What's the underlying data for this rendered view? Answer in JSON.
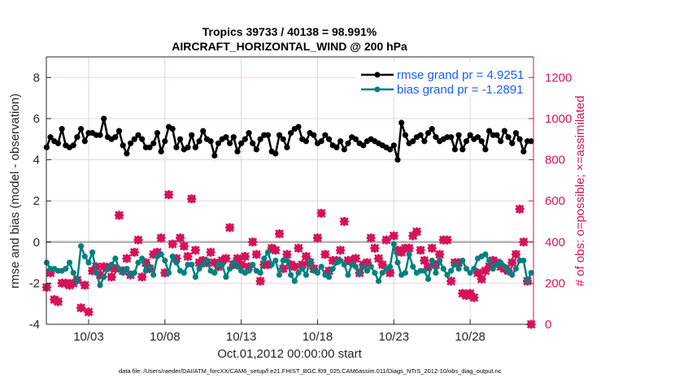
{
  "chart_data": {
    "type": "line",
    "title": [
      "Tropics 39733 / 40138 = 98.991%",
      "AIRCRAFT_HORIZONTAL_WIND @ 200 hPa"
    ],
    "xlabel": "Oct.01,2012 00:00:00 start",
    "ylabel": "rmse and bias (model - observation)",
    "ylabel_right": "# of obs: o=possible; ×=assimilated",
    "xlim_days": [
      -0.77,
      31.15
    ],
    "x_start_day": -0.75,
    "x_step_days": 0.25,
    "x_ticks": [
      {
        "day": 2,
        "label": "10/03"
      },
      {
        "day": 7,
        "label": "10/08"
      },
      {
        "day": 12,
        "label": "10/13"
      },
      {
        "day": 17,
        "label": "10/18"
      },
      {
        "day": 22,
        "label": "10/23"
      },
      {
        "day": 27,
        "label": "10/28"
      }
    ],
    "ylim": [
      -4,
      9
    ],
    "y_ticks": [
      "-4",
      "-2",
      "0",
      "2",
      "4",
      "6",
      "8"
    ],
    "ylim_right": [
      0,
      1300
    ],
    "y_ticks_right": [
      "0",
      "200",
      "400",
      "600",
      "800",
      "1000",
      "1200"
    ],
    "grid": true,
    "legend_position": "top-right",
    "colors": {
      "rmse": "#000000",
      "bias": "#00807f",
      "obs": "#d5135a",
      "legend_text": "#1a5cff"
    },
    "series": [
      {
        "name": "rmse grand pr = 4.9251",
        "key": "rmse",
        "values": [
          4.6,
          5.1,
          4.9,
          4.8,
          5.5,
          4.7,
          4.6,
          4.7,
          5.1,
          5.5,
          4.9,
          5.3,
          5.3,
          5.2,
          5.2,
          6.0,
          5.1,
          5.0,
          5.1,
          5.4,
          4.7,
          4.3,
          4.8,
          5.0,
          5.2,
          5.0,
          4.6,
          4.6,
          4.8,
          5.3,
          4.4,
          4.9,
          5.6,
          5.5,
          4.6,
          5.0,
          4.5,
          4.6,
          5.2,
          4.6,
          4.9,
          5.4,
          5.0,
          4.9,
          4.2,
          4.8,
          5.0,
          5.1,
          4.8,
          5.1,
          4.4,
          4.8,
          5.0,
          5.3,
          4.8,
          4.5,
          5.0,
          5.2,
          5.2,
          4.4,
          4.3,
          5.2,
          5.0,
          4.6,
          5.3,
          5.5,
          5.6,
          5.0,
          4.9,
          5.3,
          5.2,
          4.8,
          4.9,
          5.2,
          5.0,
          4.7,
          4.6,
          4.9,
          4.5,
          4.8,
          5.1,
          5.0,
          4.8,
          4.7,
          4.9,
          5.0,
          4.9,
          4.8,
          4.7,
          4.6,
          4.5,
          4.7,
          4.0,
          5.8,
          5.2,
          4.8,
          4.9,
          5.1,
          5.2,
          4.9,
          5.3,
          5.5,
          5.1,
          4.9,
          5.0,
          5.1,
          5.1,
          4.5,
          5.2,
          4.5,
          4.9,
          5.2,
          5.0,
          5.1,
          4.9,
          4.5,
          5.4,
          5.2,
          5.2,
          4.9,
          5.4,
          5.1,
          4.8,
          5.3,
          5.0,
          4.4,
          4.9,
          4.9
        ]
      },
      {
        "name": "bias grand pr = -1.2891",
        "key": "bias",
        "values": [
          -1.0,
          -1.3,
          -1.3,
          -1.4,
          -1.4,
          -1.3,
          -1.0,
          -1.5,
          -1.9,
          -0.2,
          -0.7,
          -1.0,
          -0.5,
          -1.5,
          -2.1,
          -1.7,
          -1.3,
          -1.1,
          -0.8,
          -1.3,
          -1.5,
          -1.3,
          -1.6,
          -1.5,
          -1.0,
          -0.8,
          -1.4,
          -1.2,
          -1.6,
          -0.7,
          -0.6,
          -0.9,
          -1.5,
          -0.7,
          -1.0,
          -1.4,
          -1.5,
          -1.1,
          -1.1,
          -1.7,
          -1.3,
          -1.1,
          -0.9,
          -1.4,
          -1.5,
          -1.1,
          -1.1,
          -1.7,
          -1.3,
          -1.0,
          -1.2,
          -1.4,
          -1.5,
          -1.4,
          -1.1,
          -1.4,
          -1.5,
          -0.8,
          -0.5,
          -1.1,
          -0.9,
          -1.6,
          -0.9,
          -0.9,
          -1.6,
          -1.9,
          -1.5,
          -1.3,
          -1.6,
          -0.9,
          -1.4,
          -1.5,
          -1.2,
          -1.6,
          -1.7,
          -1.3,
          -1.0,
          -0.9,
          -1.1,
          -1.6,
          -1.1,
          -1.2,
          -1.5,
          -1.2,
          -1.4,
          -1.2,
          -1.5,
          -1.9,
          -1.5,
          -1.3,
          -1.2,
          -0.1,
          -1.0,
          -1.6,
          -1.5,
          -0.6,
          -1.2,
          -1.5,
          -1.4,
          -1.4,
          -1.8,
          -0.9,
          -1.5,
          -0.9,
          -1.3,
          -1.6,
          -1.4,
          -1.1,
          -1.3,
          -0.9,
          -1.3,
          -1.5,
          -1.3,
          -0.8,
          -0.7,
          -0.6,
          -0.9,
          -1.3,
          -1.1,
          -1.0,
          -1.2,
          -1.4,
          -1.6,
          -1.3,
          -0.9,
          -0.9,
          -1.9,
          -1.5
        ]
      },
      {
        "name": "obs possible / assimilated",
        "key": "obs",
        "values": [
          180,
          250,
          120,
          110,
          200,
          200,
          190,
          200,
          215,
          80,
          190,
          60,
          260,
          280,
          240,
          280,
          275,
          230,
          270,
          530,
          260,
          320,
          240,
          350,
          410,
          230,
          300,
          270,
          340,
          350,
          420,
          250,
          630,
          390,
          320,
          420,
          380,
          330,
          610,
          360,
          300,
          310,
          300,
          350,
          300,
          280,
          310,
          320,
          470,
          290,
          320,
          290,
          330,
          280,
          400,
          340,
          210,
          290,
          290,
          370,
          360,
          440,
          270,
          340,
          290,
          280,
          370,
          290,
          330,
          300,
          270,
          420,
          540,
          340,
          260,
          310,
          310,
          360,
          500,
          310,
          310,
          320,
          250,
          290,
          300,
          420,
          370,
          320,
          290,
          410,
          250,
          430,
          360,
          350,
          370,
          370,
          430,
          450,
          360,
          310,
          280,
          370,
          290,
          340,
          410,
          410,
          210,
          300,
          300,
          150,
          140,
          150,
          130,
          250,
          220,
          260,
          280,
          310,
          300,
          280,
          270,
          260,
          300,
          340,
          560,
          400,
          210,
          0
        ]
      }
    ]
  },
  "footer": {
    "data_file": "data file: /Users/raeder/DAI/ATM_forcXX/CAM6_setup/f.e21.FHIST_BGC.f09_025.CAM6assim.011/Diags_NTrS_2012-10/obs_diag_output.nc"
  }
}
